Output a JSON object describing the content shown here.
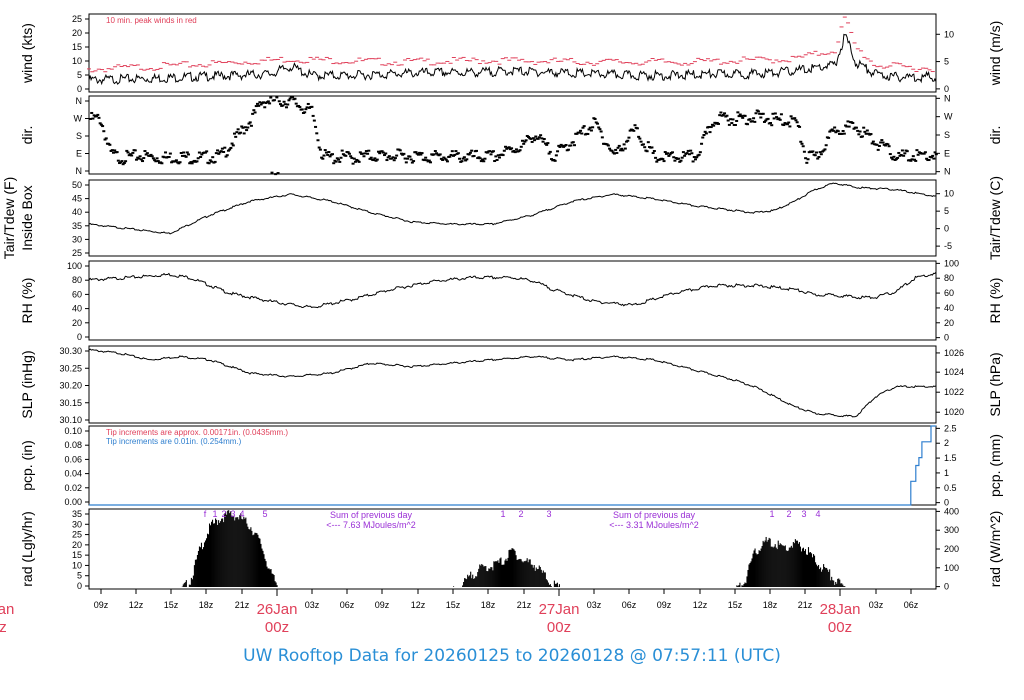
{
  "footer_title": "UW Rooftop Data for 20260125  to  20260128 @ 07:57:11  (UTC)",
  "colors": {
    "series": "#000000",
    "peak": "#e0405a",
    "precip_line": "#2f7fcf",
    "annotation": "#9a2fd6",
    "day_label": "#e0405a",
    "footer": "#2a8fd6"
  },
  "x_axis": {
    "hour_labels": [
      "09z",
      "12z",
      "15z",
      "18z",
      "21z",
      "03z",
      "06z",
      "09z",
      "12z",
      "15z",
      "18z",
      "21z",
      "03z",
      "06z",
      "09z",
      "12z",
      "15z",
      "18z",
      "21z",
      "03z",
      "06z"
    ],
    "day_labels": [
      {
        "top": "26Jan",
        "bottom": "00z"
      },
      {
        "top": "27Jan",
        "bottom": "00z"
      },
      {
        "top": "28Jan",
        "bottom": "00z"
      }
    ],
    "clipped_left": {
      "top": "an",
      "bottom": "z"
    }
  },
  "panels": [
    {
      "key": "wind",
      "left_label": "wind (kts)",
      "right_label": "wind (m/s)",
      "left_ticks": [
        "0",
        "5",
        "10",
        "15",
        "20",
        "25"
      ],
      "right_ticks": [
        "0",
        "5",
        "10"
      ],
      "annotations": [
        "10 min. peak winds in red"
      ]
    },
    {
      "key": "dir",
      "left_label": "dir.",
      "right_label": "dir.",
      "left_ticks": [
        "N",
        "E",
        "S",
        "W",
        "N"
      ],
      "right_ticks": [
        "N",
        "E",
        "S",
        "W",
        "N"
      ]
    },
    {
      "key": "temp",
      "left_label": "Tair/Tdew (F)",
      "left_label2": "Inside Box",
      "right_label": "Tair/Tdew (C)",
      "left_ticks": [
        "25",
        "30",
        "35",
        "40",
        "45",
        "50"
      ],
      "right_ticks": [
        "-5",
        "0",
        "5",
        "10"
      ]
    },
    {
      "key": "rh",
      "left_label": "RH (%)",
      "right_label": "RH (%)",
      "left_ticks": [
        "0",
        "20",
        "40",
        "60",
        "80",
        "100"
      ],
      "right_ticks": [
        "0",
        "20",
        "40",
        "60",
        "80",
        "100"
      ]
    },
    {
      "key": "slp",
      "left_label": "SLP (inHg)",
      "right_label": "SLP (hPa)",
      "left_ticks": [
        "30.10",
        "30.15",
        "30.20",
        "30.25",
        "30.30"
      ],
      "right_ticks": [
        "1020",
        "1022",
        "1024",
        "1026"
      ]
    },
    {
      "key": "pcp",
      "left_label": "pcp. (in)",
      "right_label": "pcp. (mm)",
      "left_ticks": [
        "0.00",
        "0.02",
        "0.04",
        "0.06",
        "0.08",
        "0.10"
      ],
      "right_ticks": [
        "0",
        "0.5",
        "1",
        "1.5",
        "2",
        "2.5"
      ],
      "annotations": [
        "Tip increments are approx. 0.00171in. (0.0435mm.)",
        "Tip increments are 0.01in. (0.254mm.)"
      ]
    },
    {
      "key": "rad",
      "left_label": "rad (Lgly/hr)",
      "right_label": "rad (W/m^2)",
      "left_ticks": [
        "0",
        "5",
        "10",
        "15",
        "20",
        "25",
        "30",
        "35"
      ],
      "right_ticks": [
        "0",
        "100",
        "200",
        "300",
        "400"
      ],
      "annotations": [
        "Sum of previous day",
        "<--- 7.63 MJoules/m^2",
        "Sum of previous day",
        "<--- 3.31 MJoules/m^2"
      ],
      "hour_marks": [
        [
          "f",
          "1",
          "2",
          "3",
          "4",
          "5"
        ],
        [
          "1",
          "2",
          "3"
        ],
        [
          "1",
          "2",
          "3",
          "4"
        ]
      ]
    }
  ],
  "chart_data": [
    {
      "type": "line",
      "title": "",
      "ylabel": "wind (kts)",
      "ylim": [
        0,
        26
      ],
      "x_unit": "hours since 20260125 07z",
      "series": [
        {
          "name": "wind",
          "x": [
            0,
            6,
            10,
            14,
            18,
            20,
            22,
            26,
            30,
            34,
            38,
            42,
            46,
            50,
            54,
            58,
            62,
            66,
            70,
            74,
            75,
            76,
            78,
            80,
            82
          ],
          "values": [
            4,
            4.5,
            5,
            5.5,
            6,
            8.5,
            5.5,
            5.5,
            6,
            6.5,
            6.5,
            7,
            6.5,
            6,
            5.5,
            5.5,
            6,
            6,
            7,
            9,
            19,
            10,
            6,
            5,
            5
          ]
        },
        {
          "name": "10 min. peak",
          "x": [
            0,
            10,
            20,
            30,
            40,
            50,
            60,
            70,
            74,
            75,
            76,
            78,
            82
          ],
          "values": [
            7.5,
            9,
            11,
            10,
            10.5,
            10,
            10,
            11,
            14,
            25,
            15,
            9,
            8
          ]
        }
      ]
    },
    {
      "type": "scatter",
      "title": "",
      "ylabel": "dir.",
      "ylim": [
        0,
        360
      ],
      "x_unit": "hours since 20260125 07z",
      "series": [
        {
          "name": "dir",
          "x": [
            1,
            2,
            3,
            5,
            7,
            9,
            11,
            13,
            16,
            17,
            18,
            20,
            22,
            23,
            24,
            25,
            26,
            28,
            30,
            35,
            40,
            43,
            44,
            46,
            50,
            52,
            54,
            56,
            60,
            62,
            64,
            66,
            68,
            70,
            71,
            72,
            74,
            76,
            78,
            80,
            82
          ],
          "values": [
            270,
            110,
            90,
            100,
            90,
            95,
            90,
            100,
            270,
            350,
            355,
            350,
            300,
            100,
            90,
            95,
            90,
            100,
            100,
            95,
            95,
            150,
            200,
            100,
            250,
            100,
            220,
            90,
            95,
            275,
            270,
            280,
            265,
            260,
            90,
            95,
            230,
            230,
            160,
            95,
            100
          ]
        }
      ]
    },
    {
      "type": "line",
      "title": "",
      "ylabel": "Tair/Tdew (F)",
      "ylim": [
        21,
        54
      ],
      "x_unit": "hours since 20260125 07z",
      "series": [
        {
          "name": "Tair",
          "x": [
            0,
            4,
            8,
            9,
            12,
            16,
            20,
            24,
            28,
            32,
            36,
            40,
            44,
            48,
            52,
            56,
            60,
            64,
            66,
            68,
            70,
            72,
            74,
            76,
            80,
            84
          ],
          "values": [
            35,
            33,
            31,
            33,
            39,
            45,
            48,
            45,
            40,
            36,
            35,
            35,
            39,
            45,
            48,
            46,
            43,
            41,
            40,
            41,
            45,
            50,
            53,
            51,
            50,
            47
          ]
        }
      ]
    },
    {
      "type": "line",
      "title": "",
      "ylabel": "RH (%)",
      "ylim": [
        0,
        100
      ],
      "x_unit": "hours since 20260125 07z",
      "series": [
        {
          "name": "RH",
          "x": [
            0,
            4,
            8,
            10,
            14,
            18,
            22,
            26,
            30,
            34,
            38,
            42,
            44,
            46,
            50,
            54,
            58,
            62,
            66,
            70,
            72,
            74,
            76,
            78,
            80,
            82,
            84
          ],
          "values": [
            77,
            80,
            84,
            80,
            60,
            50,
            42,
            52,
            65,
            75,
            80,
            80,
            76,
            65,
            50,
            45,
            60,
            70,
            70,
            65,
            58,
            58,
            55,
            55,
            62,
            80,
            85
          ]
        }
      ]
    },
    {
      "type": "line",
      "title": "",
      "ylabel": "SLP (inHg)",
      "ylim": [
        30.09,
        30.32
      ],
      "x_unit": "hours since 20260125 07z",
      "series": [
        {
          "name": "SLP",
          "x": [
            0,
            3,
            6,
            9,
            12,
            16,
            20,
            24,
            28,
            32,
            36,
            40,
            44,
            48,
            52,
            56,
            60,
            64,
            66,
            70,
            72,
            74,
            76,
            78,
            80,
            84
          ],
          "values": [
            30.31,
            30.3,
            30.28,
            30.29,
            30.28,
            30.24,
            30.23,
            30.24,
            30.27,
            30.26,
            30.27,
            30.28,
            30.29,
            30.28,
            30.29,
            30.28,
            30.25,
            30.22,
            30.2,
            30.14,
            30.12,
            30.115,
            30.11,
            30.17,
            30.2,
            30.2
          ]
        }
      ]
    },
    {
      "type": "line",
      "title": "",
      "ylabel": "pcp. (in)",
      "ylim": [
        0,
        0.1
      ],
      "x_unit": "hours since 20260125 07z",
      "series": [
        {
          "name": "pcp",
          "x": [
            0,
            81,
            81.5,
            82,
            82.3,
            82.6,
            83,
            83.5,
            84
          ],
          "values": [
            0,
            0,
            0.03,
            0.05,
            0.06,
            0.08,
            0.08,
            0.1,
            0.1
          ]
        }
      ]
    },
    {
      "type": "area",
      "title": "",
      "ylabel": "rad (Lgly/hr)",
      "ylim": [
        0,
        37
      ],
      "x_unit": "hours since 20260125 07z",
      "series": [
        {
          "name": "rad",
          "x": [
            9,
            10,
            11,
            12,
            13,
            14,
            15,
            16,
            17,
            18,
            19,
            36,
            37,
            38,
            39,
            40,
            41,
            42,
            43,
            44,
            45,
            46,
            47,
            64,
            65,
            66,
            67,
            68,
            69,
            70,
            71,
            72,
            73,
            74,
            75
          ],
          "values": [
            0,
            5,
            20,
            30,
            34,
            36,
            34,
            30,
            22,
            8,
            0,
            0,
            3,
            8,
            11,
            12,
            14,
            19,
            14,
            13,
            8,
            3,
            0,
            0,
            5,
            18,
            23,
            22,
            20,
            22,
            20,
            14,
            10,
            5,
            1
          ]
        }
      ]
    }
  ]
}
